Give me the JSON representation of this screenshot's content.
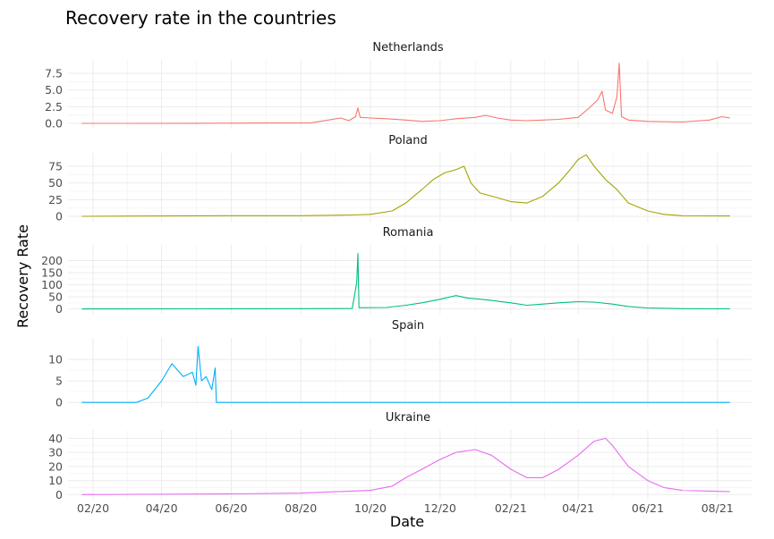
{
  "chart_data": {
    "type": "line",
    "title": "Recovery rate in the countries",
    "xlabel": "Date",
    "ylabel": "Recovery Rate",
    "x_ticks": [
      "02/20",
      "04/20",
      "06/20",
      "08/20",
      "10/20",
      "12/20",
      "02/21",
      "04/21",
      "06/21",
      "08/21"
    ],
    "x_tick_dates": [
      "2020-02-01",
      "2020-04-01",
      "2020-06-01",
      "2020-08-01",
      "2020-10-01",
      "2020-12-01",
      "2021-02-01",
      "2021-04-01",
      "2021-06-01",
      "2021-08-01"
    ],
    "x_range": [
      "2020-01-10",
      "2021-08-31"
    ],
    "grid": true,
    "legend": "none",
    "facets": "stacked vertically",
    "series": [
      {
        "name": "Netherlands",
        "color": "#F8766D",
        "ylim": [
          -0.8,
          9.5
        ],
        "y_ticks": [
          0.0,
          2.5,
          5.0,
          7.5
        ],
        "y_tick_labels": [
          "0.0",
          "2.5",
          "5.0",
          "7.5"
        ],
        "points": [
          [
            "2020-01-22",
            0
          ],
          [
            "2020-03-01",
            0
          ],
          [
            "2020-05-01",
            0.02
          ],
          [
            "2020-07-01",
            0.05
          ],
          [
            "2020-08-10",
            0.08
          ],
          [
            "2020-08-25",
            0.5
          ],
          [
            "2020-09-05",
            0.8
          ],
          [
            "2020-09-12",
            0.4
          ],
          [
            "2020-09-18",
            1.0
          ],
          [
            "2020-09-20",
            2.3
          ],
          [
            "2020-09-22",
            0.9
          ],
          [
            "2020-10-01",
            0.8
          ],
          [
            "2020-10-15",
            0.7
          ],
          [
            "2020-11-01",
            0.5
          ],
          [
            "2020-11-15",
            0.3
          ],
          [
            "2020-12-01",
            0.4
          ],
          [
            "2020-12-15",
            0.7
          ],
          [
            "2021-01-01",
            0.9
          ],
          [
            "2021-01-10",
            1.2
          ],
          [
            "2021-01-20",
            0.8
          ],
          [
            "2021-02-01",
            0.5
          ],
          [
            "2021-02-15",
            0.4
          ],
          [
            "2021-03-01",
            0.5
          ],
          [
            "2021-03-15",
            0.6
          ],
          [
            "2021-04-01",
            0.9
          ],
          [
            "2021-04-10",
            2.2
          ],
          [
            "2021-04-18",
            3.5
          ],
          [
            "2021-04-22",
            4.8
          ],
          [
            "2021-04-25",
            2.0
          ],
          [
            "2021-05-01",
            1.5
          ],
          [
            "2021-05-05",
            4.0
          ],
          [
            "2021-05-07",
            9.0
          ],
          [
            "2021-05-09",
            1.0
          ],
          [
            "2021-05-15",
            0.5
          ],
          [
            "2021-06-01",
            0.3
          ],
          [
            "2021-07-01",
            0.2
          ],
          [
            "2021-07-25",
            0.5
          ],
          [
            "2021-08-05",
            1.0
          ],
          [
            "2021-08-12",
            0.8
          ]
        ]
      },
      {
        "name": "Poland",
        "color": "#A3A500",
        "ylim": [
          -8,
          95
        ],
        "y_ticks": [
          0,
          25,
          50,
          75
        ],
        "y_tick_labels": [
          "0",
          "25",
          "50",
          "75"
        ],
        "points": [
          [
            "2020-01-22",
            0
          ],
          [
            "2020-04-01",
            0.5
          ],
          [
            "2020-06-01",
            1
          ],
          [
            "2020-08-01",
            1
          ],
          [
            "2020-09-15",
            2
          ],
          [
            "2020-10-01",
            3
          ],
          [
            "2020-10-20",
            8
          ],
          [
            "2020-11-01",
            20
          ],
          [
            "2020-11-15",
            40
          ],
          [
            "2020-11-25",
            55
          ],
          [
            "2020-12-05",
            65
          ],
          [
            "2020-12-15",
            70
          ],
          [
            "2020-12-22",
            75
          ],
          [
            "2020-12-28",
            50
          ],
          [
            "2021-01-05",
            35
          ],
          [
            "2021-01-20",
            28
          ],
          [
            "2021-02-01",
            22
          ],
          [
            "2021-02-15",
            20
          ],
          [
            "2021-03-01",
            30
          ],
          [
            "2021-03-15",
            50
          ],
          [
            "2021-03-25",
            70
          ],
          [
            "2021-04-01",
            85
          ],
          [
            "2021-04-08",
            92
          ],
          [
            "2021-04-15",
            75
          ],
          [
            "2021-04-25",
            55
          ],
          [
            "2021-05-05",
            40
          ],
          [
            "2021-05-15",
            20
          ],
          [
            "2021-06-01",
            8
          ],
          [
            "2021-06-15",
            3
          ],
          [
            "2021-07-01",
            1
          ],
          [
            "2021-08-12",
            0.5
          ]
        ]
      },
      {
        "name": "Romania",
        "color": "#00BF7D",
        "ylim": [
          -20,
          265
        ],
        "y_ticks": [
          0,
          50,
          100,
          150,
          200
        ],
        "y_tick_labels": [
          "0",
          "50",
          "100",
          "150",
          "200"
        ],
        "points": [
          [
            "2020-01-22",
            0
          ],
          [
            "2020-05-01",
            0.5
          ],
          [
            "2020-08-01",
            1
          ],
          [
            "2020-09-15",
            2
          ],
          [
            "2020-09-19",
            110
          ],
          [
            "2020-09-20",
            230
          ],
          [
            "2020-09-21",
            5
          ],
          [
            "2020-10-15",
            6
          ],
          [
            "2020-11-01",
            15
          ],
          [
            "2020-11-15",
            25
          ],
          [
            "2020-12-01",
            40
          ],
          [
            "2020-12-15",
            55
          ],
          [
            "2020-12-25",
            45
          ],
          [
            "2021-01-10",
            38
          ],
          [
            "2021-02-01",
            25
          ],
          [
            "2021-02-15",
            15
          ],
          [
            "2021-03-01",
            20
          ],
          [
            "2021-03-15",
            25
          ],
          [
            "2021-04-01",
            30
          ],
          [
            "2021-04-15",
            28
          ],
          [
            "2021-05-01",
            20
          ],
          [
            "2021-05-15",
            10
          ],
          [
            "2021-06-01",
            4
          ],
          [
            "2021-07-01",
            1
          ],
          [
            "2021-08-12",
            0.5
          ]
        ]
      },
      {
        "name": "Spain",
        "color": "#00B0F6",
        "ylim": [
          -1,
          15
        ],
        "y_ticks": [
          0,
          5,
          10
        ],
        "y_tick_labels": [
          "0",
          "5",
          "10"
        ],
        "points": [
          [
            "2020-01-22",
            0
          ],
          [
            "2020-03-10",
            0
          ],
          [
            "2020-03-20",
            1
          ],
          [
            "2020-04-01",
            5
          ],
          [
            "2020-04-10",
            9
          ],
          [
            "2020-04-20",
            6
          ],
          [
            "2020-04-28",
            7
          ],
          [
            "2020-05-01",
            4
          ],
          [
            "2020-05-03",
            13
          ],
          [
            "2020-05-06",
            5
          ],
          [
            "2020-05-10",
            6
          ],
          [
            "2020-05-15",
            3
          ],
          [
            "2020-05-18",
            8
          ],
          [
            "2020-05-19",
            0
          ],
          [
            "2021-08-12",
            0
          ]
        ]
      },
      {
        "name": "Ukraine",
        "color": "#E76BF3",
        "ylim": [
          -3,
          46
        ],
        "y_ticks": [
          0,
          10,
          20,
          30,
          40
        ],
        "y_tick_labels": [
          "0",
          "10",
          "20",
          "30",
          "40"
        ],
        "points": [
          [
            "2020-01-22",
            0
          ],
          [
            "2020-06-01",
            0.5
          ],
          [
            "2020-08-01",
            1
          ],
          [
            "2020-09-01",
            2
          ],
          [
            "2020-10-01",
            3
          ],
          [
            "2020-10-20",
            6
          ],
          [
            "2020-11-01",
            12
          ],
          [
            "2020-11-15",
            18
          ],
          [
            "2020-12-01",
            25
          ],
          [
            "2020-12-15",
            30
          ],
          [
            "2021-01-01",
            32
          ],
          [
            "2021-01-15",
            28
          ],
          [
            "2021-02-01",
            18
          ],
          [
            "2021-02-15",
            12
          ],
          [
            "2021-03-01",
            12
          ],
          [
            "2021-03-15",
            18
          ],
          [
            "2021-04-01",
            28
          ],
          [
            "2021-04-15",
            38
          ],
          [
            "2021-04-25",
            40
          ],
          [
            "2021-05-01",
            35
          ],
          [
            "2021-05-15",
            20
          ],
          [
            "2021-06-01",
            10
          ],
          [
            "2021-06-15",
            5
          ],
          [
            "2021-07-01",
            3
          ],
          [
            "2021-08-12",
            2
          ]
        ]
      }
    ]
  }
}
